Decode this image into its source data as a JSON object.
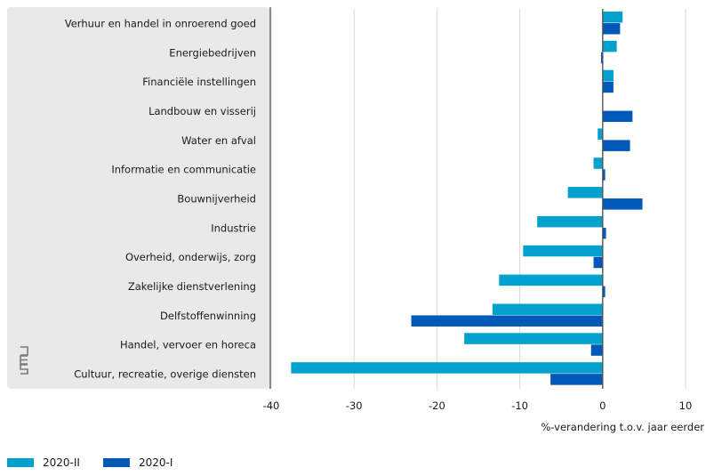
{
  "colors": {
    "series_2020_II": "#00a1cd",
    "series_2020_I": "#0058b8",
    "panel": "#e9e9e9",
    "grid": "#d8d8d8",
    "zero": "#555555"
  },
  "chart_data": {
    "type": "bar",
    "orientation": "horizontal",
    "categories": [
      "Verhuur en handel in onroerend goed",
      "Energiebedrijven",
      "Financiële instellingen",
      "Landbouw en visserij",
      "Water en afval",
      "Informatie en communicatie",
      "Bouwnijverheid",
      "Industrie",
      "Overheid, onderwijs, zorg",
      "Zakelijke dienstverlening",
      "Delfstoffenwinning",
      "Handel, vervoer en horeca",
      "Cultuur, recreatie, overige diensten"
    ],
    "series": [
      {
        "name": "2020-II",
        "color": "#00a1cd",
        "values": [
          2.4,
          1.7,
          1.3,
          0.0,
          -0.6,
          -1.1,
          -4.2,
          -7.9,
          -9.6,
          -12.5,
          -13.3,
          -16.7,
          -37.6
        ]
      },
      {
        "name": "2020-I",
        "color": "#0058b8",
        "values": [
          2.1,
          -0.2,
          1.3,
          3.6,
          3.3,
          0.3,
          4.8,
          0.4,
          -1.1,
          0.3,
          -23.1,
          -1.4,
          -6.3
        ]
      }
    ],
    "xlim": [
      -40,
      10
    ],
    "xticks": [
      -40,
      -30,
      -20,
      -10,
      0,
      10
    ],
    "xlabel": "%-verandering t.o.v. jaar eerder",
    "ylabel": "",
    "grid": true,
    "legend_position": "bottom-left"
  }
}
